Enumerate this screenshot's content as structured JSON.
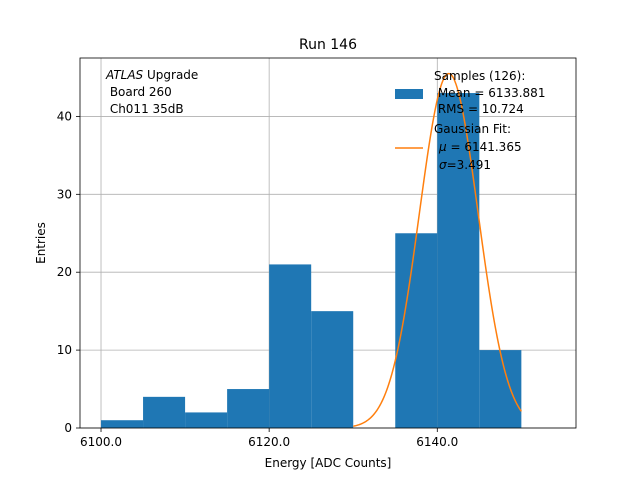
{
  "chart_data": {
    "type": "bar",
    "title": "Run 146",
    "xlabel": "Energy [ADC Counts]",
    "ylabel": "Entries",
    "xlim": [
      6097.5,
      6156.5
    ],
    "ylim": [
      0,
      47.5
    ],
    "grid": true,
    "legend_placement": "top-right",
    "x_ticks": [
      6100,
      6120,
      6140
    ],
    "x_tick_labels": [
      "6100.0",
      "6120.0",
      "6140.0"
    ],
    "y_ticks": [
      0,
      10,
      20,
      30,
      40
    ],
    "y_tick_labels": [
      "0",
      "10",
      "20",
      "30",
      "40"
    ],
    "histogram": {
      "bin_edges": [
        6100,
        6105,
        6110,
        6115,
        6120,
        6125,
        6130,
        6135,
        6140,
        6145,
        6150
      ],
      "counts": [
        1,
        4,
        2,
        5,
        21,
        15,
        0,
        25,
        43,
        10
      ],
      "color": "#1f77b4"
    },
    "fit": {
      "type": "gaussian",
      "mu": 6141.365,
      "sigma": 3.491,
      "amplitude": 45.5,
      "x_range": [
        6130,
        6150
      ],
      "color": "#ff7f0e"
    },
    "annotation": {
      "line1_italic": "ATLAS",
      "line1_rest": " Upgrade",
      "line2": " Board 260",
      "line3": " Ch011 35dB"
    },
    "legend": {
      "samples_title": "Samples (126):",
      "samples_mean": " Mean = 6133.881",
      "samples_rms": " RMS = 10.724",
      "fit_title": "Gaussian Fit:",
      "fit_mu_symbol": "μ",
      "fit_mu_value": " = 6141.365",
      "fit_sigma_symbol": "σ",
      "fit_sigma_value": "=3.491"
    }
  }
}
